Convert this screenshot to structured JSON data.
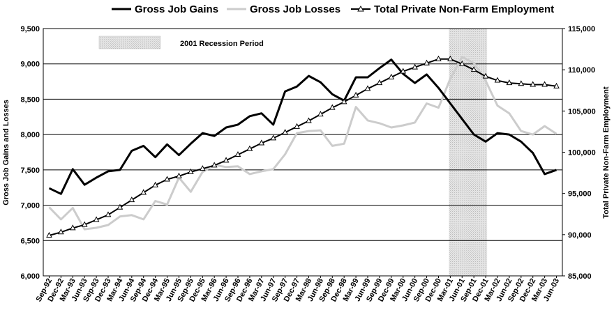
{
  "chart_data": {
    "type": "line",
    "title": "",
    "legend_position": "top",
    "grid": "horizontal",
    "y_left": {
      "label": "Gross Job Gains and Losses",
      "lim": [
        6000,
        9500
      ],
      "ticks": [
        "6,000",
        "6,500",
        "7,000",
        "7,500",
        "8,000",
        "8,500",
        "9,000",
        "9,500"
      ]
    },
    "y_right": {
      "label": "Total Private Non-Farm Employment",
      "lim": [
        85000,
        115000
      ],
      "ticks": [
        "85,000",
        "90,000",
        "95,000",
        "100,000",
        "105,000",
        "110,000",
        "115,000"
      ]
    },
    "categories": [
      "Sep-92",
      "Dec-92",
      "Mar-93",
      "Jun-93",
      "Sep-93",
      "Dec-93",
      "Mar-94",
      "Jun-94",
      "Sep-94",
      "Dec-94",
      "Mar-95",
      "Jun-95",
      "Sep-95",
      "Dec-95",
      "Mar-96",
      "Jun-96",
      "Sep-96",
      "Dec-96",
      "Mar-97",
      "Jun-97",
      "Sep-97",
      "Dec-97",
      "Mar-98",
      "Jun-98",
      "Sep-98",
      "Dec-98",
      "Mar-99",
      "Jun-99",
      "Sep-99",
      "Dec-99",
      "Mar-00",
      "Jun-00",
      "Sep-00",
      "Dec-00",
      "Mar-01",
      "Jun-01",
      "Sep-01",
      "Dec-01",
      "Mar-02",
      "Jun-02",
      "Sep-02",
      "Dec-02",
      "Mar-03",
      "Jun-03"
    ],
    "series": [
      {
        "name": "Gross Job Gains",
        "axis": "left",
        "color": "#000000",
        "style": "line",
        "values": [
          7240,
          7160,
          7510,
          7290,
          7390,
          7480,
          7500,
          7770,
          7840,
          7680,
          7860,
          7710,
          7870,
          8020,
          7980,
          8100,
          8140,
          8260,
          8300,
          8140,
          8610,
          8680,
          8830,
          8740,
          8570,
          8480,
          8810,
          8810,
          8940,
          9060,
          8860,
          8730,
          8850,
          8660,
          8440,
          8220,
          8000,
          7900,
          8020,
          8000,
          7900,
          7740,
          7440,
          7500
        ]
      },
      {
        "name": "Gross Job Losses",
        "axis": "left",
        "color": "#cccccc",
        "style": "line",
        "values": [
          6970,
          6800,
          6960,
          6660,
          6680,
          6720,
          6840,
          6860,
          6800,
          7060,
          7010,
          7390,
          7190,
          7470,
          7570,
          7540,
          7550,
          7440,
          7480,
          7510,
          7720,
          8020,
          8050,
          8060,
          7840,
          7870,
          8390,
          8200,
          8160,
          8100,
          8130,
          8170,
          8440,
          8380,
          8790,
          9100,
          9010,
          8760,
          8410,
          8300,
          8050,
          8000,
          8120,
          8010
        ]
      },
      {
        "name": "Total Private Non-Farm Employment",
        "axis": "right",
        "color": "#000000",
        "style": "line-triangle",
        "values": [
          89900,
          90300,
          90800,
          91200,
          91800,
          92400,
          93300,
          94200,
          95100,
          96000,
          96700,
          97100,
          97600,
          98000,
          98400,
          99000,
          99700,
          100400,
          101100,
          101700,
          102400,
          103100,
          103800,
          104600,
          105400,
          106100,
          106900,
          107700,
          108400,
          109100,
          109800,
          110300,
          110800,
          111300,
          111300,
          110700,
          110000,
          109200,
          108700,
          108400,
          108300,
          108200,
          108200,
          108000
        ]
      }
    ],
    "recession_band": {
      "label": "2001 Recession Period",
      "start": "Mar-01",
      "end": "Dec-01"
    }
  }
}
